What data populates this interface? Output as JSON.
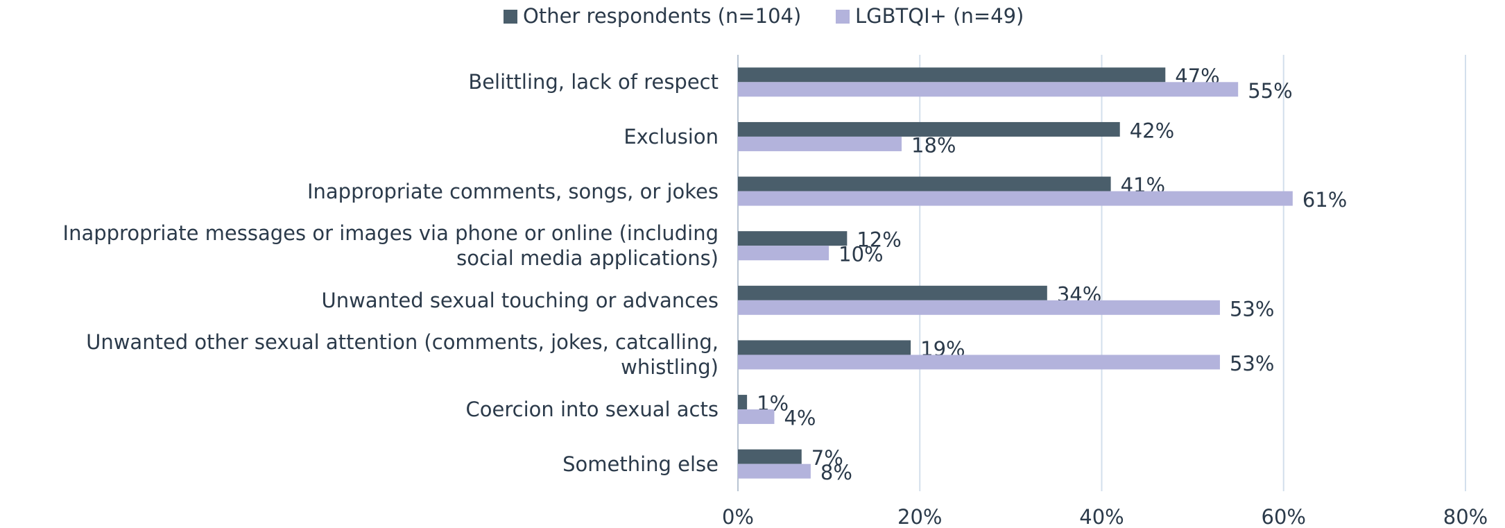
{
  "chart_data": {
    "type": "bar",
    "orientation": "horizontal",
    "categories": [
      "Belittling, lack of respect",
      "Exclusion",
      "Inappropriate comments, songs, or jokes",
      "Inappropriate messages or images via phone or online (including social media applications)",
      "Unwanted sexual touching or advances",
      "Unwanted other sexual attention (comments, jokes, catcalling, whistling)",
      "Coercion into sexual acts",
      "Something else"
    ],
    "series": [
      {
        "name": "Other respondents (n=104)",
        "color": "#4a5e6b",
        "values": [
          47,
          42,
          41,
          12,
          34,
          19,
          1,
          7
        ],
        "value_labels": [
          "47%",
          "42%",
          "41%",
          "12%",
          "34%",
          "19%",
          "1%",
          "7%"
        ]
      },
      {
        "name": "LGBTQI+ (n=49)",
        "color": "#b3b3dc",
        "values": [
          55,
          18,
          61,
          10,
          53,
          53,
          4,
          8
        ],
        "value_labels": [
          "55%",
          "18%",
          "61%",
          "10%",
          "53%",
          "53%",
          "4%",
          "8%"
        ]
      }
    ],
    "xlim": [
      0,
      80
    ],
    "xticks": [
      {
        "value": 0,
        "label": "0%"
      },
      {
        "value": 20,
        "label": "20%"
      },
      {
        "value": 40,
        "label": "40%"
      },
      {
        "value": 60,
        "label": "60%"
      },
      {
        "value": 80,
        "label": "80%"
      }
    ],
    "grid": true,
    "legend": "top"
  }
}
